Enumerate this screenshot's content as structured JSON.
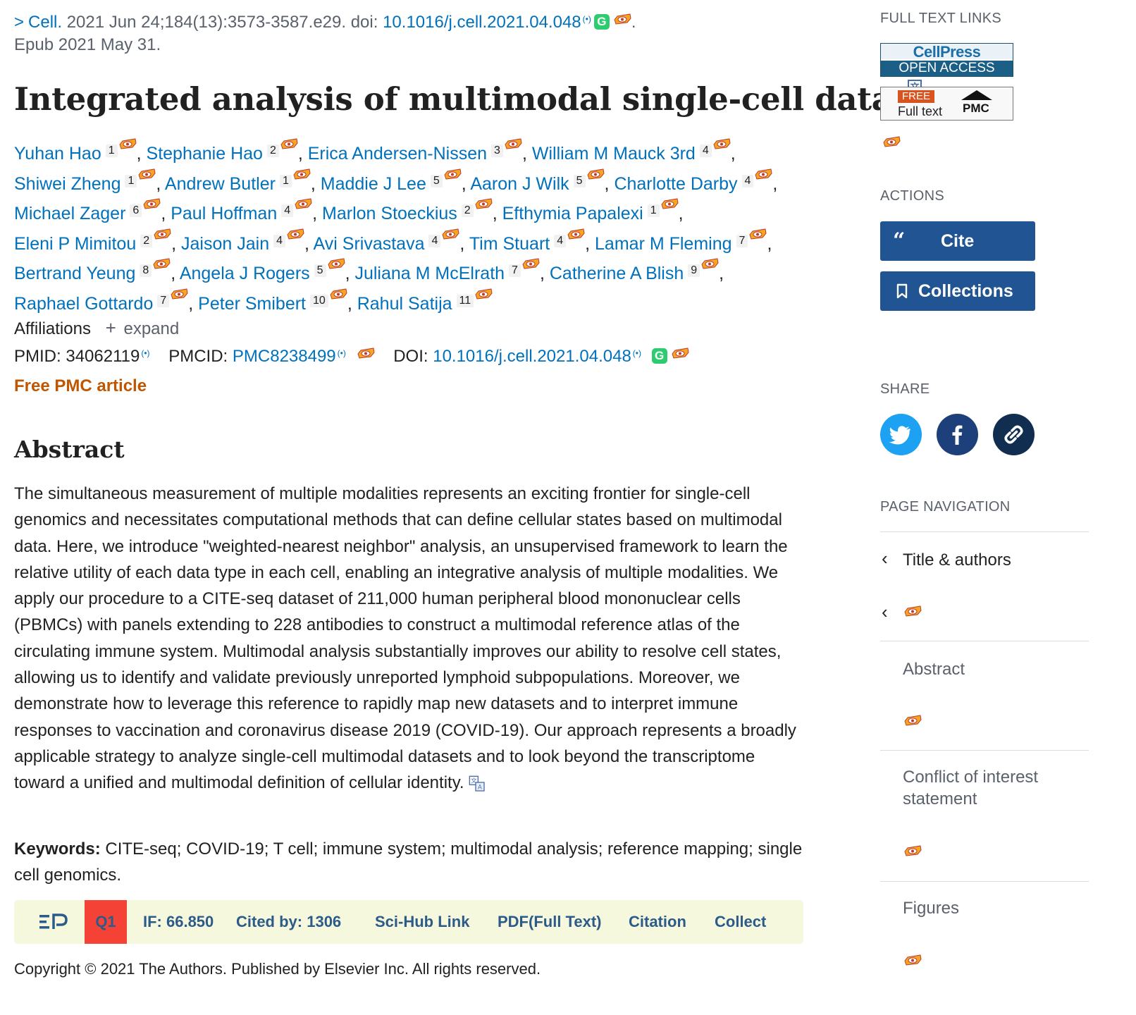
{
  "citation": {
    "journal": "Cell.",
    "date_pages": "2021 Jun 24;184(13):3573-3587.e29.",
    "doi_label": "doi:",
    "doi": "10.1016/j.cell.2021.04.048",
    "period": ".",
    "epub": "Epub 2021 May 31."
  },
  "title": "Integrated analysis of multimodal single-cell data",
  "authors": [
    {
      "name": "Yuhan Hao",
      "aff": "1"
    },
    {
      "name": "Stephanie Hao",
      "aff": "2"
    },
    {
      "name": "Erica Andersen-Nissen",
      "aff": "3"
    },
    {
      "name": "William M Mauck 3rd",
      "aff": "4"
    },
    {
      "name": "Shiwei Zheng",
      "aff": "1"
    },
    {
      "name": "Andrew Butler",
      "aff": "1"
    },
    {
      "name": "Maddie J Lee",
      "aff": "5"
    },
    {
      "name": "Aaron J Wilk",
      "aff": "5"
    },
    {
      "name": "Charlotte Darby",
      "aff": "4"
    },
    {
      "name": "Michael Zager",
      "aff": "6"
    },
    {
      "name": "Paul Hoffman",
      "aff": "4"
    },
    {
      "name": "Marlon Stoeckius",
      "aff": "2"
    },
    {
      "name": "Efthymia Papalexi",
      "aff": "1"
    },
    {
      "name": "Eleni P Mimitou",
      "aff": "2"
    },
    {
      "name": "Jaison Jain",
      "aff": "4"
    },
    {
      "name": "Avi Srivastava",
      "aff": "4"
    },
    {
      "name": "Tim Stuart",
      "aff": "4"
    },
    {
      "name": "Lamar M Fleming",
      "aff": "7"
    },
    {
      "name": "Bertrand Yeung",
      "aff": "8"
    },
    {
      "name": "Angela J Rogers",
      "aff": "5"
    },
    {
      "name": "Juliana M McElrath",
      "aff": "7"
    },
    {
      "name": "Catherine A Blish",
      "aff": "9"
    },
    {
      "name": "Raphael Gottardo",
      "aff": "7"
    },
    {
      "name": "Peter Smibert",
      "aff": "10"
    },
    {
      "name": "Rahul Satija",
      "aff": "11"
    }
  ],
  "affiliations": {
    "label": "Affiliations",
    "expand": "expand"
  },
  "ids": {
    "pmid_label": "PMID:",
    "pmid": "34062119",
    "pmcid_label": "PMCID:",
    "pmcid": "PMC8238499",
    "doi_label": "DOI:",
    "doi": "10.1016/j.cell.2021.04.048"
  },
  "free_pmc": "Free PMC article",
  "abstract": {
    "heading": "Abstract",
    "text": "The simultaneous measurement of multiple modalities represents an exciting frontier for single-cell genomics and necessitates computational methods that can define cellular states based on multimodal data. Here, we introduce \"weighted-nearest neighbor\" analysis, an unsupervised framework to learn the relative utility of each data type in each cell, enabling an integrative analysis of multiple modalities. We apply our procedure to a CITE-seq dataset of 211,000 human peripheral blood mononuclear cells (PBMCs) with panels extending to 228 antibodies to construct a multimodal reference atlas of the circulating immune system. Multimodal analysis substantially improves our ability to resolve cell states, allowing us to identify and validate previously unreported lymphoid subpopulations. Moreover, we demonstrate how to leverage this reference to rapidly map new datasets and to interpret immune responses to vaccination and coronavirus disease 2019 (COVID-19). Our approach represents a broadly applicable strategy to analyze single-cell multimodal datasets and to look beyond the transcriptome toward a unified and multimodal definition of cellular identity."
  },
  "keywords": {
    "label": "Keywords:",
    "text": "CITE-seq; COVID-19; T cell; immune system; multimodal analysis; reference mapping; single cell genomics."
  },
  "toolbar": {
    "quartile": "Q1",
    "impact": "IF: 66.850",
    "cited": "Cited by:  1306",
    "scihub": "Sci-Hub Link",
    "pdf": "PDF(Full Text)",
    "citation": "Citation",
    "collect": "Collect",
    "quartile_color": "#f44336",
    "bg_color": "#f5f8dd"
  },
  "copyright": "Copyright © 2021 The Authors. Published by Elsevier Inc. All rights reserved.",
  "sidebar": {
    "full_text_links": "FULL TEXT LINKS",
    "cellpress_top": "CellPress",
    "cellpress_bottom": "OPEN ACCESS",
    "pmc_free": "FREE",
    "pmc_full": "Full text",
    "pmc_logo": "PMC",
    "actions": "ACTIONS",
    "cite": "Cite",
    "collections": "Collections",
    "share": "SHARE",
    "page_navigation": "PAGE NAVIGATION",
    "nav": [
      "Title & authors",
      "Abstract",
      "Conflict of interest statement",
      "Figures"
    ]
  },
  "colors": {
    "link": "#0071bc",
    "button": "#205493",
    "twitter": "#1da1f2",
    "facebook": "#1d3f7a",
    "permalink": "#112e51",
    "free_pmc": "#c05600"
  }
}
